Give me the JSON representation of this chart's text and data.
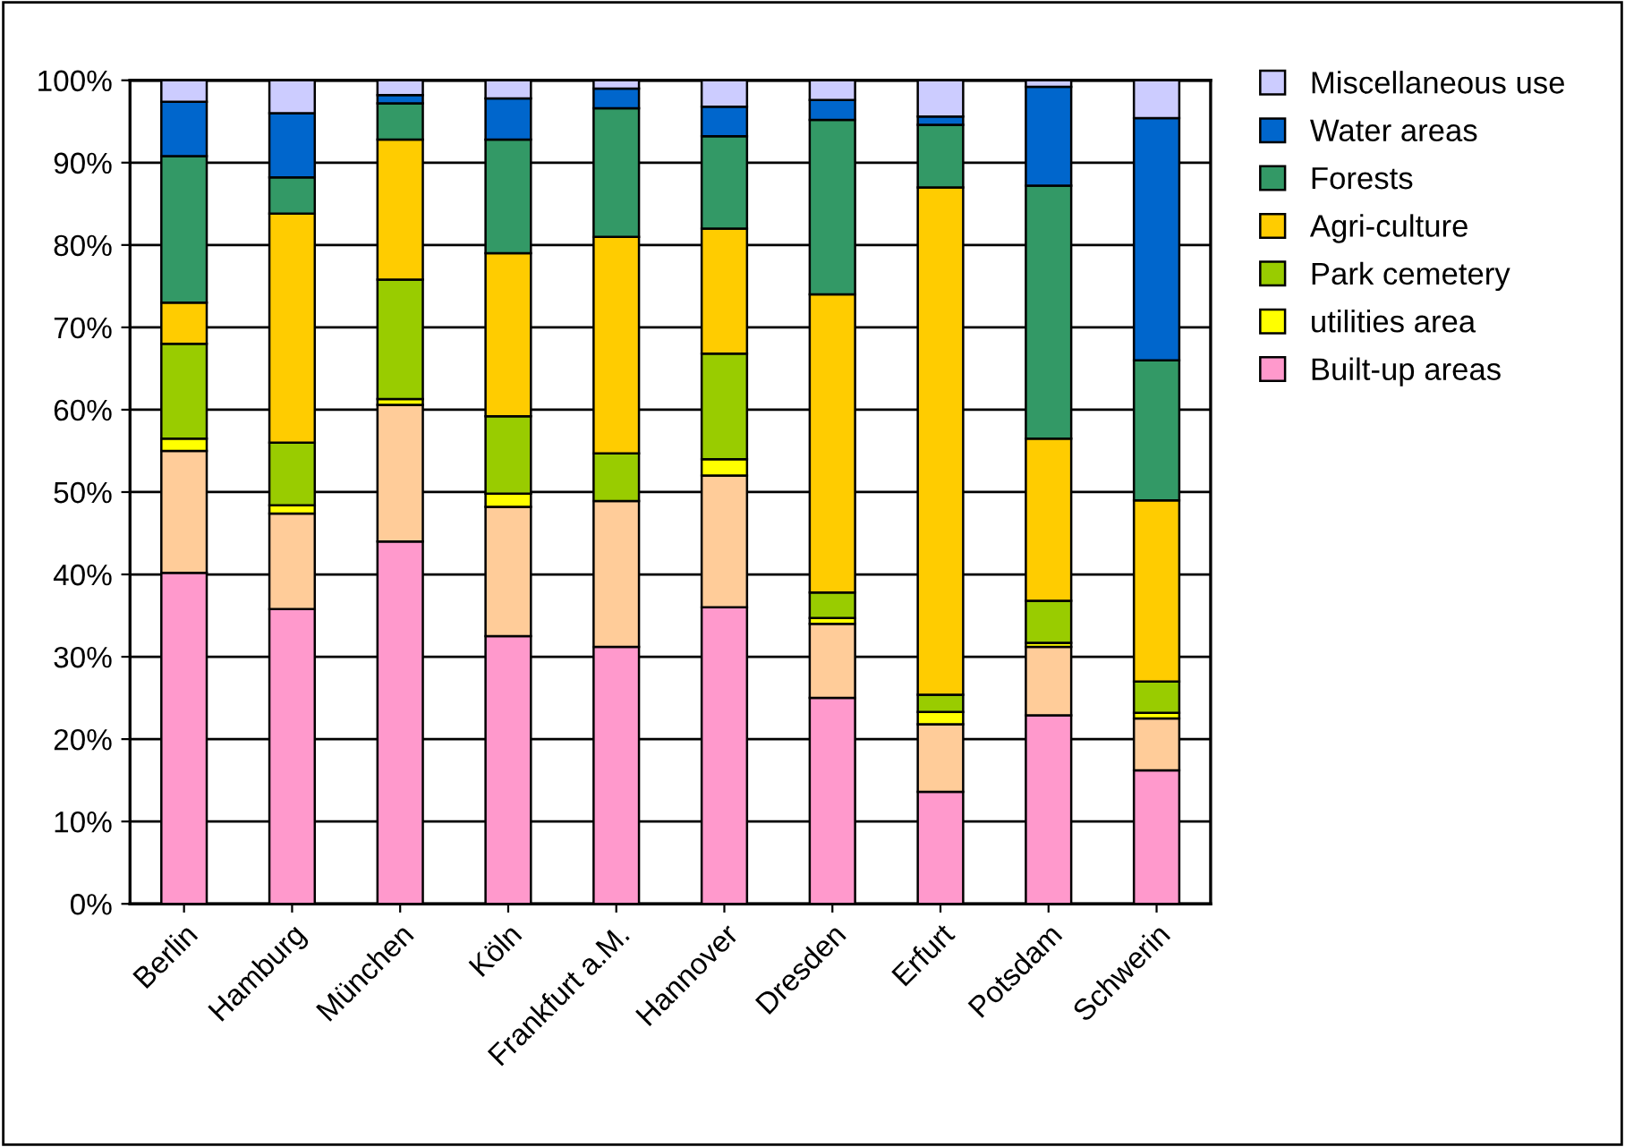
{
  "chart_data": {
    "type": "bar",
    "stacked": true,
    "categories": [
      "Berlin",
      "Hamburg",
      "München",
      "Köln",
      "Frankfurt a.M.",
      "Hannover",
      "Dresden",
      "Erfurt",
      "Potsdam",
      "Schwerin"
    ],
    "series": [
      {
        "name": "Built-up areas",
        "color": "#ff99cc",
        "values": [
          40.2,
          35.8,
          44,
          32.5,
          31.2,
          36,
          25,
          13.6,
          22.9,
          16.2
        ]
      },
      {
        "color": "#ffcc99",
        "values": [
          14.8,
          11.6,
          16.6,
          15.7,
          17.7,
          16,
          9,
          8.2,
          8.3,
          6.3
        ]
      },
      {
        "name": "utilities area",
        "color": "#ffff00",
        "values": [
          1.5,
          1.0,
          0.7,
          1.6,
          null,
          2,
          0.7,
          1.5,
          0.5,
          0.7
        ]
      },
      {
        "name": "Park cemetery",
        "color": "#99cc00",
        "values": [
          11.5,
          7.6,
          14.5,
          9.4,
          5.8,
          12.8,
          3.1,
          2.1,
          5.1,
          3.8
        ]
      },
      {
        "name": "Agri-culture",
        "color": "#ffcc00",
        "values": [
          5,
          27.8,
          17,
          19.8,
          26.3,
          15.2,
          36.2,
          61.6,
          19.7,
          22
        ]
      },
      {
        "name": "Forests",
        "color": "#339966",
        "values": [
          17.8,
          4.4,
          4.4,
          13.8,
          15.6,
          11.2,
          21.2,
          7.6,
          30.7,
          17
        ]
      },
      {
        "name": "Water areas",
        "color": "#0066cc",
        "values": [
          6.6,
          7.8,
          1.0,
          5,
          2.4,
          3.6,
          2.4,
          1.0,
          12,
          29.4
        ]
      },
      {
        "name": "Miscellaneous use",
        "color": "#ccccff",
        "values": [
          2.6,
          4,
          1.8,
          2.2,
          1.0,
          3.2,
          2.4,
          4.4,
          0.8,
          4.6
        ]
      }
    ],
    "ylim": [
      0,
      100
    ],
    "yticks": [
      {
        "value": 0,
        "label": "0%"
      },
      {
        "value": 10,
        "label": "10%"
      },
      {
        "value": 20,
        "label": "20%"
      },
      {
        "value": 30,
        "label": "30%"
      },
      {
        "value": 40,
        "label": "40%"
      },
      {
        "value": 50,
        "label": "50%"
      },
      {
        "value": 60,
        "label": "60%"
      },
      {
        "value": 70,
        "label": "70%"
      },
      {
        "value": 80,
        "label": "80%"
      },
      {
        "value": 90,
        "label": "90%"
      },
      {
        "value": 100,
        "label": "100%"
      }
    ],
    "grid": "y",
    "legend": "right"
  }
}
